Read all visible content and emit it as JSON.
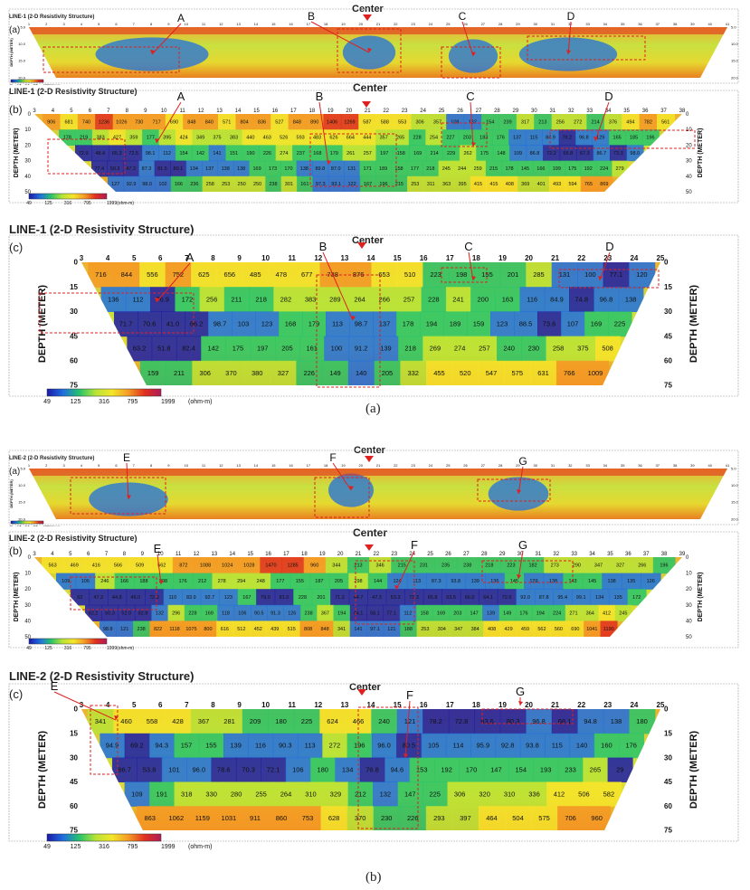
{
  "figure": {
    "center_label": "Center",
    "unit_label": "(ohm-m)",
    "depth_axis_label": "DEPTH (METER)",
    "scale_ticks": [
      "49",
      "125",
      "316",
      "795",
      "1999"
    ],
    "scale_ticks_b": [
      "49",
      "125",
      "316",
      "795",
      "1999(ohm-m)"
    ],
    "caption_a": "(a)",
    "caption_b": "(b)"
  },
  "groups": [
    {
      "name": "line1",
      "caption": "(a)",
      "panels": [
        {
          "id": "l1a",
          "sub_label": "(a)",
          "title": "LINE-1 (2-D Resistivity Structure)",
          "electrodes": [
            "1",
            "2",
            "3",
            "4",
            "5",
            "6",
            "7",
            "8",
            "9",
            "10",
            "11",
            "12",
            "13",
            "14",
            "15",
            "16",
            "17",
            "18",
            "19",
            "20",
            "21",
            "22",
            "23",
            "24",
            "25",
            "26",
            "27",
            "28",
            "29",
            "30",
            "31",
            "32",
            "33",
            "34",
            "35",
            "36",
            "37",
            "38",
            "39",
            "40",
            "41"
          ],
          "anomalies": [
            "A",
            "B",
            "C",
            "D"
          ],
          "depth_ticks": [
            "5.0",
            "10.0",
            "15.0",
            "20.0"
          ]
        },
        {
          "id": "l1b",
          "sub_label": "(b)",
          "title": "LINE-1 (2-D Resistivity Structure)",
          "electrodes": [
            "3",
            "4",
            "5",
            "6",
            "7",
            "8",
            "9",
            "10",
            "11",
            "12",
            "13",
            "14",
            "15",
            "16",
            "17",
            "18",
            "19",
            "20",
            "21",
            "22",
            "23",
            "24",
            "25",
            "26",
            "27",
            "28",
            "29",
            "30",
            "31",
            "32",
            "33",
            "34",
            "35",
            "36",
            "37",
            "38"
          ],
          "anomalies": [
            "A",
            "B",
            "C",
            "D"
          ],
          "depth_ticks": [
            "0",
            "10",
            "20",
            "30",
            "40",
            "50"
          ],
          "row_values": [
            [
              "906",
              "681",
              "740",
              "1236",
              "1026",
              "730",
              "717",
              "690",
              "848",
              "840",
              "571",
              "804",
              "836",
              "527",
              "848",
              "890",
              "1406",
              "1269",
              "587",
              "588",
              "553",
              "306",
              "357",
              "108",
              "132",
              "154",
              "239",
              "317",
              "213",
              "256",
              "272",
              "214",
              "376",
              "494",
              "782",
              "561"
            ],
            [
              "178",
              "219",
              "383",
              "427",
              "359",
              "177",
              "395",
              "424",
              "349",
              "375",
              "383",
              "440",
              "463",
              "526",
              "593",
              "483",
              "626",
              "664",
              "444",
              "357",
              "265",
              "228",
              "254",
              "227",
              "203",
              "183",
              "176",
              "137",
              "115",
              "84.9",
              "76.2",
              "96.8",
              "129",
              "165",
              "185",
              "196"
            ],
            [
              "72.9",
              "48.4",
              "65.3",
              "72.5",
              "98.1",
              "112",
              "154",
              "142",
              "141",
              "151",
              "190",
              "226",
              "274",
              "237",
              "168",
              "179",
              "261",
              "257",
              "197",
              "158",
              "169",
              "214",
              "229",
              "262",
              "175",
              "148",
              "109",
              "86.8",
              "72.2",
              "66.8",
              "67.3",
              "86.7",
              "73.3",
              "98.0"
            ],
            [
              "77.4",
              "50.3",
              "47.3",
              "87.3",
              "81.5",
              "80.1",
              "134",
              "137",
              "138",
              "138",
              "169",
              "173",
              "170",
              "138",
              "89.8",
              "87.0",
              "131",
              "171",
              "189",
              "158",
              "177",
              "218",
              "245",
              "244",
              "259",
              "215",
              "178",
              "145",
              "166",
              "199",
              "175",
              "192",
              "224",
              "279"
            ],
            [
              "127",
              "92.9",
              "98.0",
              "102",
              "166",
              "236",
              "258",
              "253",
              "250",
              "250",
              "238",
              "301",
              "161",
              "97.3",
              "93.1",
              "122",
              "167",
              "196",
              "215",
              "253",
              "311",
              "363",
              "395",
              "415",
              "415",
              "408",
              "369",
              "401",
              "493",
              "594",
              "765",
              "869"
            ]
          ]
        },
        {
          "id": "l1c",
          "sub_label": "(c)",
          "title": "LINE-1 (2-D Resistivity Structure)",
          "electrodes": [
            "3",
            "4",
            "5",
            "6",
            "7",
            "8",
            "9",
            "10",
            "11",
            "12",
            "13",
            "14",
            "15",
            "16",
            "17",
            "18",
            "19",
            "20",
            "21",
            "22",
            "23",
            "24",
            "25"
          ],
          "anomalies": [
            "A",
            "B",
            "C",
            "D"
          ],
          "depth_ticks": [
            "0",
            "15",
            "30",
            "45",
            "60",
            "75"
          ],
          "row_values": [
            [
              "716",
              "844",
              "556",
              "752",
              "625",
              "656",
              "485",
              "478",
              "677",
              "738",
              "876",
              "653",
              "510",
              "223",
              "198",
              "155",
              "201",
              "285",
              "131",
              "100",
              "77.1",
              "120"
            ],
            [
              "136",
              "112",
              "76.9",
              "172",
              "256",
              "211",
              "218",
              "282",
              "383",
              "289",
              "264",
              "266",
              "257",
              "228",
              "241",
              "200",
              "163",
              "116",
              "84.9",
              "74.8",
              "96.8",
              "138"
            ],
            [
              "71.7",
              "70.6",
              "41.0",
              "66.2",
              "98.7",
              "103",
              "123",
              "168",
              "179",
              "113",
              "98.7",
              "137",
              "178",
              "194",
              "189",
              "159",
              "123",
              "88.5",
              "73.6",
              "107",
              "169",
              "225"
            ],
            [
              "63.2",
              "51.8",
              "82.4",
              "142",
              "175",
              "197",
              "205",
              "161",
              "100",
              "91.2",
              "139",
              "218",
              "269",
              "274",
              "257",
              "240",
              "230",
              "258",
              "375",
              "508"
            ],
            [
              "159",
              "211",
              "306",
              "370",
              "380",
              "327",
              "226",
              "149",
              "140",
              "205",
              "332",
              "455",
              "520",
              "547",
              "575",
              "631",
              "766",
              "1009"
            ]
          ]
        }
      ]
    },
    {
      "name": "line2",
      "caption": "(b)",
      "panels": [
        {
          "id": "l2a",
          "sub_label": "(a)",
          "title": "LINE-2 (2-D Resistivity Structure)",
          "electrodes": [
            "1",
            "2",
            "3",
            "4",
            "5",
            "6",
            "7",
            "8",
            "9",
            "10",
            "11",
            "12",
            "13",
            "14",
            "15",
            "16",
            "17",
            "18",
            "19",
            "20",
            "21",
            "22",
            "23",
            "24",
            "25",
            "26",
            "27",
            "28",
            "29",
            "30",
            "31",
            "32",
            "33",
            "34",
            "35",
            "36",
            "37",
            "38",
            "39",
            "40",
            "41"
          ],
          "anomalies": [
            "E",
            "F",
            "G"
          ],
          "depth_ticks": [
            "5.0",
            "10.0",
            "15.0",
            "20.0"
          ]
        },
        {
          "id": "l2b",
          "sub_label": "(b)",
          "title": "LINE-2 (2-D Resistivity Structure)",
          "electrodes": [
            "3",
            "4",
            "5",
            "6",
            "7",
            "8",
            "9",
            "10",
            "11",
            "12",
            "13",
            "14",
            "15",
            "16",
            "17",
            "18",
            "19",
            "20",
            "21",
            "22",
            "23",
            "24",
            "25",
            "26",
            "27",
            "28",
            "29",
            "30",
            "31",
            "32",
            "33",
            "34",
            "35",
            "36",
            "37",
            "38",
            "39"
          ],
          "anomalies": [
            "E",
            "F",
            "G"
          ],
          "depth_ticks": [
            "0",
            "10",
            "20",
            "30",
            "40",
            "50"
          ],
          "row_values": [
            [
              "563",
              "469",
              "416",
              "566",
              "509",
              "562",
              "872",
              "1088",
              "1024",
              "1028",
              "1470",
              "1285",
              "960",
              "344",
              "213",
              "346",
              "215",
              "231",
              "235",
              "238",
              "218",
              "223",
              "182",
              "273",
              "290",
              "347",
              "327",
              "266",
              "196"
            ],
            [
              "109",
              "106",
              "246",
              "166",
              "188",
              "208",
              "176",
              "212",
              "278",
              "294",
              "248",
              "177",
              "155",
              "187",
              "205",
              "298",
              "144",
              "124",
              "113",
              "87.3",
              "93.8",
              "139",
              "136",
              "145",
              "129",
              "138",
              "143",
              "145",
              "138",
              "135",
              "126"
            ],
            [
              "62",
              "47.3",
              "44.8",
              "49.0",
              "72.3",
              "110",
              "83.9",
              "92.7",
              "123",
              "167",
              "79.0",
              "81.0",
              "228",
              "201",
              "71.2",
              "44.7",
              "47.3",
              "53.3",
              "71.3",
              "65.8",
              "63.5",
              "66.0",
              "64.1",
              "72.0",
              "92.0",
              "87.8",
              "95.4",
              "99.1",
              "134",
              "135",
              "172"
            ],
            [
              "62.2",
              "50.3",
              "52.0",
              "82.8",
              "132",
              "296",
              "228",
              "169",
              "118",
              "106",
              "90.5",
              "91.3",
              "126",
              "238",
              "367",
              "194",
              "44.1",
              "58.1",
              "77.1",
              "112",
              "158",
              "169",
              "203",
              "147",
              "139",
              "149",
              "176",
              "194",
              "224",
              "271",
              "364",
              "412",
              "245"
            ],
            [
              "98.8",
              "121",
              "238",
              "822",
              "1118",
              "1075",
              "800",
              "616",
              "512",
              "452",
              "439",
              "515",
              "808",
              "848",
              "341",
              "141",
              "97.1",
              "121",
              "188",
              "253",
              "304",
              "347",
              "384",
              "408",
              "429",
              "459",
              "562",
              "560",
              "690",
              "1041",
              "1190"
            ]
          ]
        },
        {
          "id": "l2c",
          "sub_label": "(c)",
          "title": "LINE-2 (2-D Resistivity Structure)",
          "electrodes": [
            "3",
            "4",
            "5",
            "6",
            "7",
            "8",
            "9",
            "10",
            "11",
            "12",
            "13",
            "14",
            "15",
            "16",
            "17",
            "18",
            "19",
            "20",
            "21",
            "22",
            "23",
            "24",
            "25"
          ],
          "anomalies": [
            "E",
            "F",
            "G"
          ],
          "depth_ticks": [
            "0",
            "15",
            "30",
            "45",
            "60",
            "75"
          ],
          "row_values": [
            [
              "341",
              "460",
              "558",
              "428",
              "367",
              "281",
              "209",
              "180",
              "225",
              "624",
              "466",
              "240",
              "121",
              "78.2",
              "72.8",
              "63.6",
              "80.3",
              "96.8",
              "68.1",
              "94.8",
              "138",
              "180"
            ],
            [
              "94.9",
              "69.2",
              "94.3",
              "157",
              "155",
              "139",
              "116",
              "90.3",
              "113",
              "272",
              "196",
              "96.0",
              "80.5",
              "105",
              "114",
              "95.9",
              "92.8",
              "93.8",
              "115",
              "140",
              "160",
              "176"
            ],
            [
              "66.7",
              "53.8",
              "101",
              "96.0",
              "78.6",
              "70.3",
              "72.1",
              "106",
              "180",
              "134",
              "76.8",
              "94.6",
              "153",
              "192",
              "170",
              "147",
              "154",
              "193",
              "233",
              "265",
              "29"
            ],
            [
              "109",
              "191",
              "318",
              "330",
              "280",
              "255",
              "264",
              "310",
              "329",
              "212",
              "132",
              "147",
              "225",
              "306",
              "320",
              "310",
              "336",
              "412",
              "506",
              "582"
            ],
            [
              "863",
              "1062",
              "1159",
              "1031",
              "911",
              "860",
              "753",
              "628",
              "370",
              "230",
              "226",
              "293",
              "397",
              "464",
              "504",
              "575",
              "706",
              "960"
            ]
          ]
        }
      ]
    }
  ],
  "colors": {
    "scale": [
      "#1a1aa8",
      "#1f6fe0",
      "#27c46a",
      "#b8e436",
      "#f4e52a",
      "#f59a25",
      "#e0301e",
      "#b01a5a"
    ],
    "marker": "#e02020",
    "annotation": "#e02020"
  }
}
